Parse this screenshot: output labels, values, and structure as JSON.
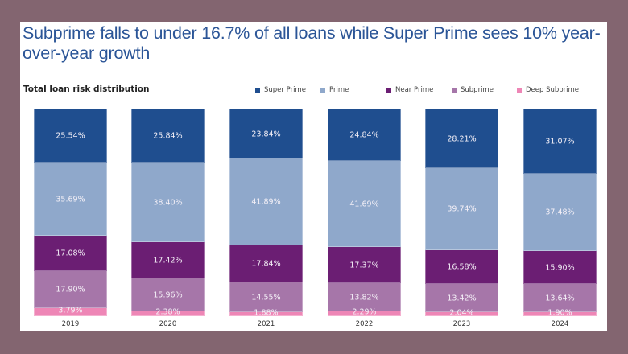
{
  "header": {
    "title": "Subprime falls to under 16.7% of all loans while Super Prime sees 10% year-over-year growth",
    "subtitle": "Total loan risk distribution"
  },
  "legend": [
    {
      "label": "Super Prime",
      "color": "#1f4e8f"
    },
    {
      "label": "Prime",
      "color": "#8fa8cb"
    },
    {
      "label": "Near Prime",
      "color": "#6b1e73"
    },
    {
      "label": "Subprime",
      "color": "#a676a9"
    },
    {
      "label": "Deep Subprime",
      "color": "#ee86b6"
    }
  ],
  "chart_data": {
    "type": "bar",
    "stacked": true,
    "normalized_percent": true,
    "title": "Subprime falls to under 16.7% of all loans while Super Prime sees 10% year-over-year growth",
    "subtitle": "Total loan risk distribution",
    "xlabel": "",
    "ylabel": "",
    "ylim": [
      0,
      100
    ],
    "grid": false,
    "legend_position": "top",
    "categories": [
      "2019",
      "2020",
      "2021",
      "2022",
      "2023",
      "2024"
    ],
    "series": [
      {
        "name": "Super Prime",
        "color": "#1f4e8f",
        "values": [
          25.54,
          25.84,
          23.84,
          24.84,
          28.21,
          31.07
        ],
        "labels": [
          "25.54%",
          "25.84%",
          "23.84%",
          "24.84%",
          "28.21%",
          "31.07%"
        ]
      },
      {
        "name": "Prime",
        "color": "#8fa8cb",
        "values": [
          35.69,
          38.4,
          41.89,
          41.69,
          39.74,
          37.48
        ],
        "labels": [
          "35.69%",
          "38.40%",
          "41.89%",
          "41.69%",
          "39.74%",
          "37.48%"
        ]
      },
      {
        "name": "Near Prime",
        "color": "#6b1e73",
        "values": [
          17.08,
          17.42,
          17.84,
          17.37,
          16.58,
          15.9
        ],
        "labels": [
          "17.08%",
          "17.42%",
          "17.84%",
          "17.37%",
          "16.58%",
          "15.90%"
        ]
      },
      {
        "name": "Subprime",
        "color": "#a676a9",
        "values": [
          17.9,
          15.96,
          14.55,
          13.82,
          13.42,
          13.64
        ],
        "labels": [
          "17.90%",
          "15.96%",
          "14.55%",
          "13.82%",
          "13.42%",
          "13.64%"
        ]
      },
      {
        "name": "Deep Subprime",
        "color": "#ee86b6",
        "values": [
          3.79,
          2.38,
          1.88,
          2.29,
          2.04,
          1.9
        ],
        "labels": [
          "3.79%",
          "2.38%",
          "1.88%",
          "2.29%",
          "2.04%",
          "1.90%"
        ]
      }
    ]
  }
}
